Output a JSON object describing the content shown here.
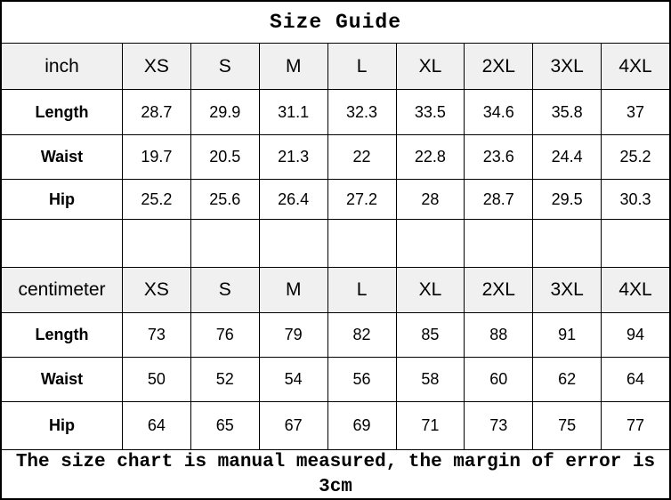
{
  "title": "Size Guide",
  "footer_note": "The size chart is manual measured, the margin of error is 3cm",
  "colors": {
    "header_bg": "#f0f0f0",
    "border": "#000000",
    "text": "#000000",
    "background": "#ffffff"
  },
  "chart_data": {
    "type": "table",
    "title": "Size Guide",
    "size_labels": [
      "XS",
      "S",
      "M",
      "L",
      "XL",
      "2XL",
      "3XL",
      "4XL"
    ],
    "sections": [
      {
        "unit": "inch",
        "rows": [
          {
            "label": "Length",
            "values": [
              "28.7",
              "29.9",
              "31.1",
              "32.3",
              "33.5",
              "34.6",
              "35.8",
              "37"
            ]
          },
          {
            "label": "Waist",
            "values": [
              "19.7",
              "20.5",
              "21.3",
              "22",
              "22.8",
              "23.6",
              "24.4",
              "25.2"
            ]
          },
          {
            "label": "Hip",
            "values": [
              "25.2",
              "25.6",
              "26.4",
              "27.2",
              "28",
              "28.7",
              "29.5",
              "30.3"
            ]
          }
        ]
      },
      {
        "unit": "centimeter",
        "rows": [
          {
            "label": "Length",
            "values": [
              "73",
              "76",
              "79",
              "82",
              "85",
              "88",
              "91",
              "94"
            ]
          },
          {
            "label": "Waist",
            "values": [
              "50",
              "52",
              "54",
              "56",
              "58",
              "60",
              "62",
              "64"
            ]
          },
          {
            "label": "Hip",
            "values": [
              "64",
              "65",
              "67",
              "69",
              "71",
              "73",
              "75",
              "77"
            ]
          }
        ]
      }
    ],
    "note": "The size chart is manual measured, the margin of error is 3cm"
  }
}
